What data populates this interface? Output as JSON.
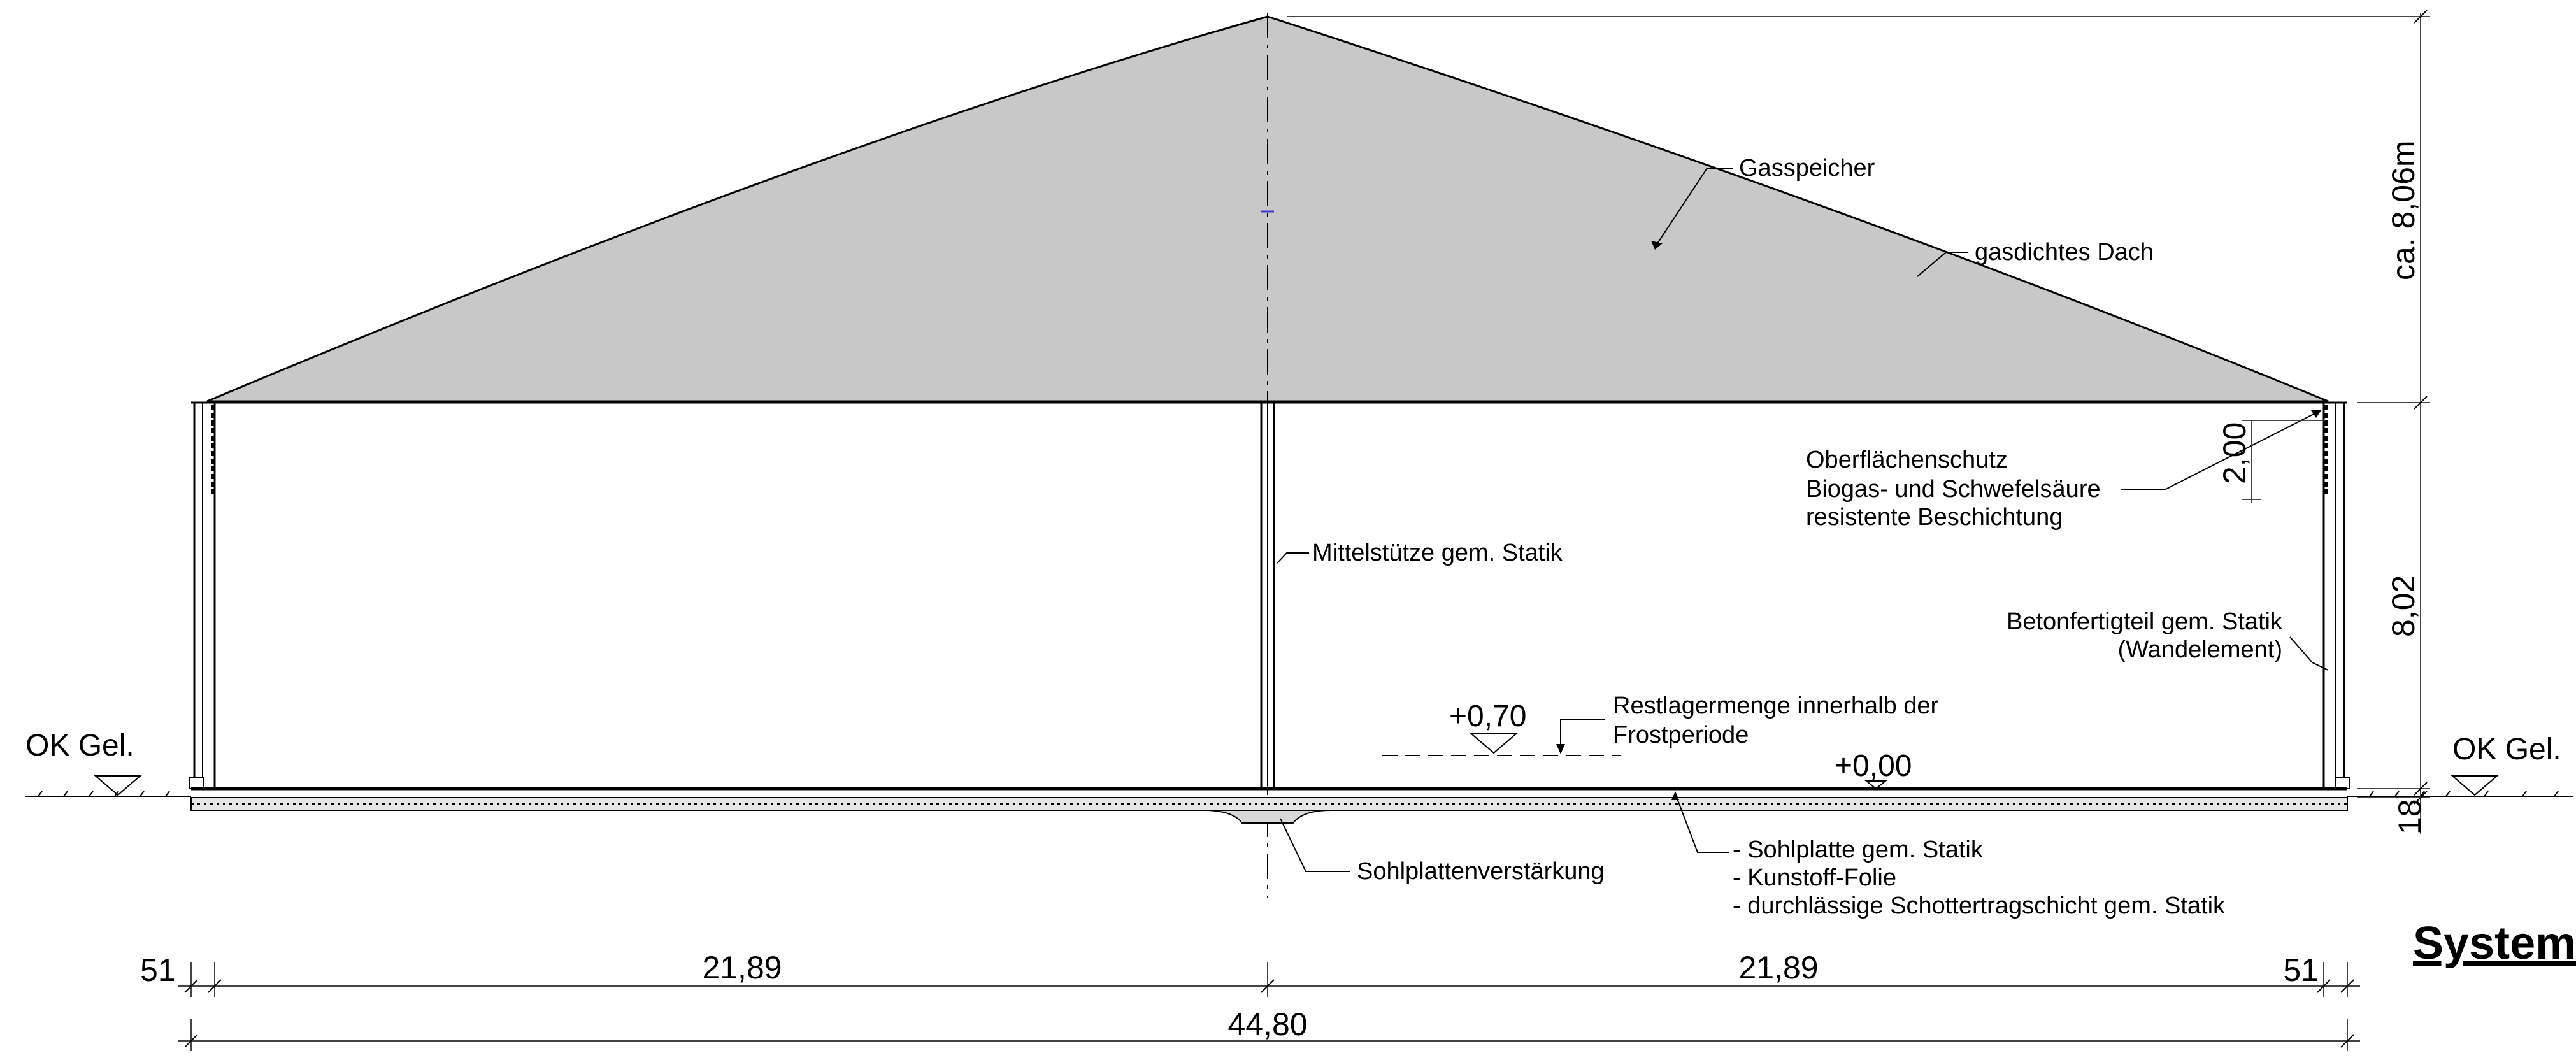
{
  "labels": {
    "gasspeicher": "Gasspeicher",
    "dach": "gasdichtes Dach",
    "oberflaechen_1": "Oberflächenschutz",
    "oberflaechen_2": "Biogas- und Schwefelsäure",
    "oberflaechen_3": "resistente Beschichtung",
    "mittelstuetze": "Mittelstütze gem. Statik",
    "betonfertigteil_1": "Betonfertigteil gem. Statik",
    "betonfertigteil_2": "(Wandelement)",
    "restlager_1": "Restlagermenge innerhalb der",
    "restlager_2": "Frostperiode",
    "level_070": "+0,70",
    "level_000": "+0,00",
    "ok_gel_left": "OK Gel.",
    "ok_gel_right": "OK Gel.",
    "sohlverstaerkung": "Sohlplattenverstärkung",
    "layer_1": "- Sohlplatte gem. Statik",
    "layer_2": "- Kunstoff-Folie",
    "layer_3": "- durchlässige Schottertragschicht gem. Statik",
    "section_title": "System"
  },
  "dimensions": {
    "roof_height": "ca. 8,06m",
    "wall_height": "8,02",
    "coating_height": "2,00",
    "slab_thickness": "18",
    "left_wall": "51",
    "left_span": "21,89",
    "right_span": "21,89",
    "right_wall": "51",
    "total_width": "44,80"
  },
  "colors": {
    "roof_fill": "#c8c8c8",
    "line": "#000000",
    "axis_marker": "#3b3bd6"
  }
}
